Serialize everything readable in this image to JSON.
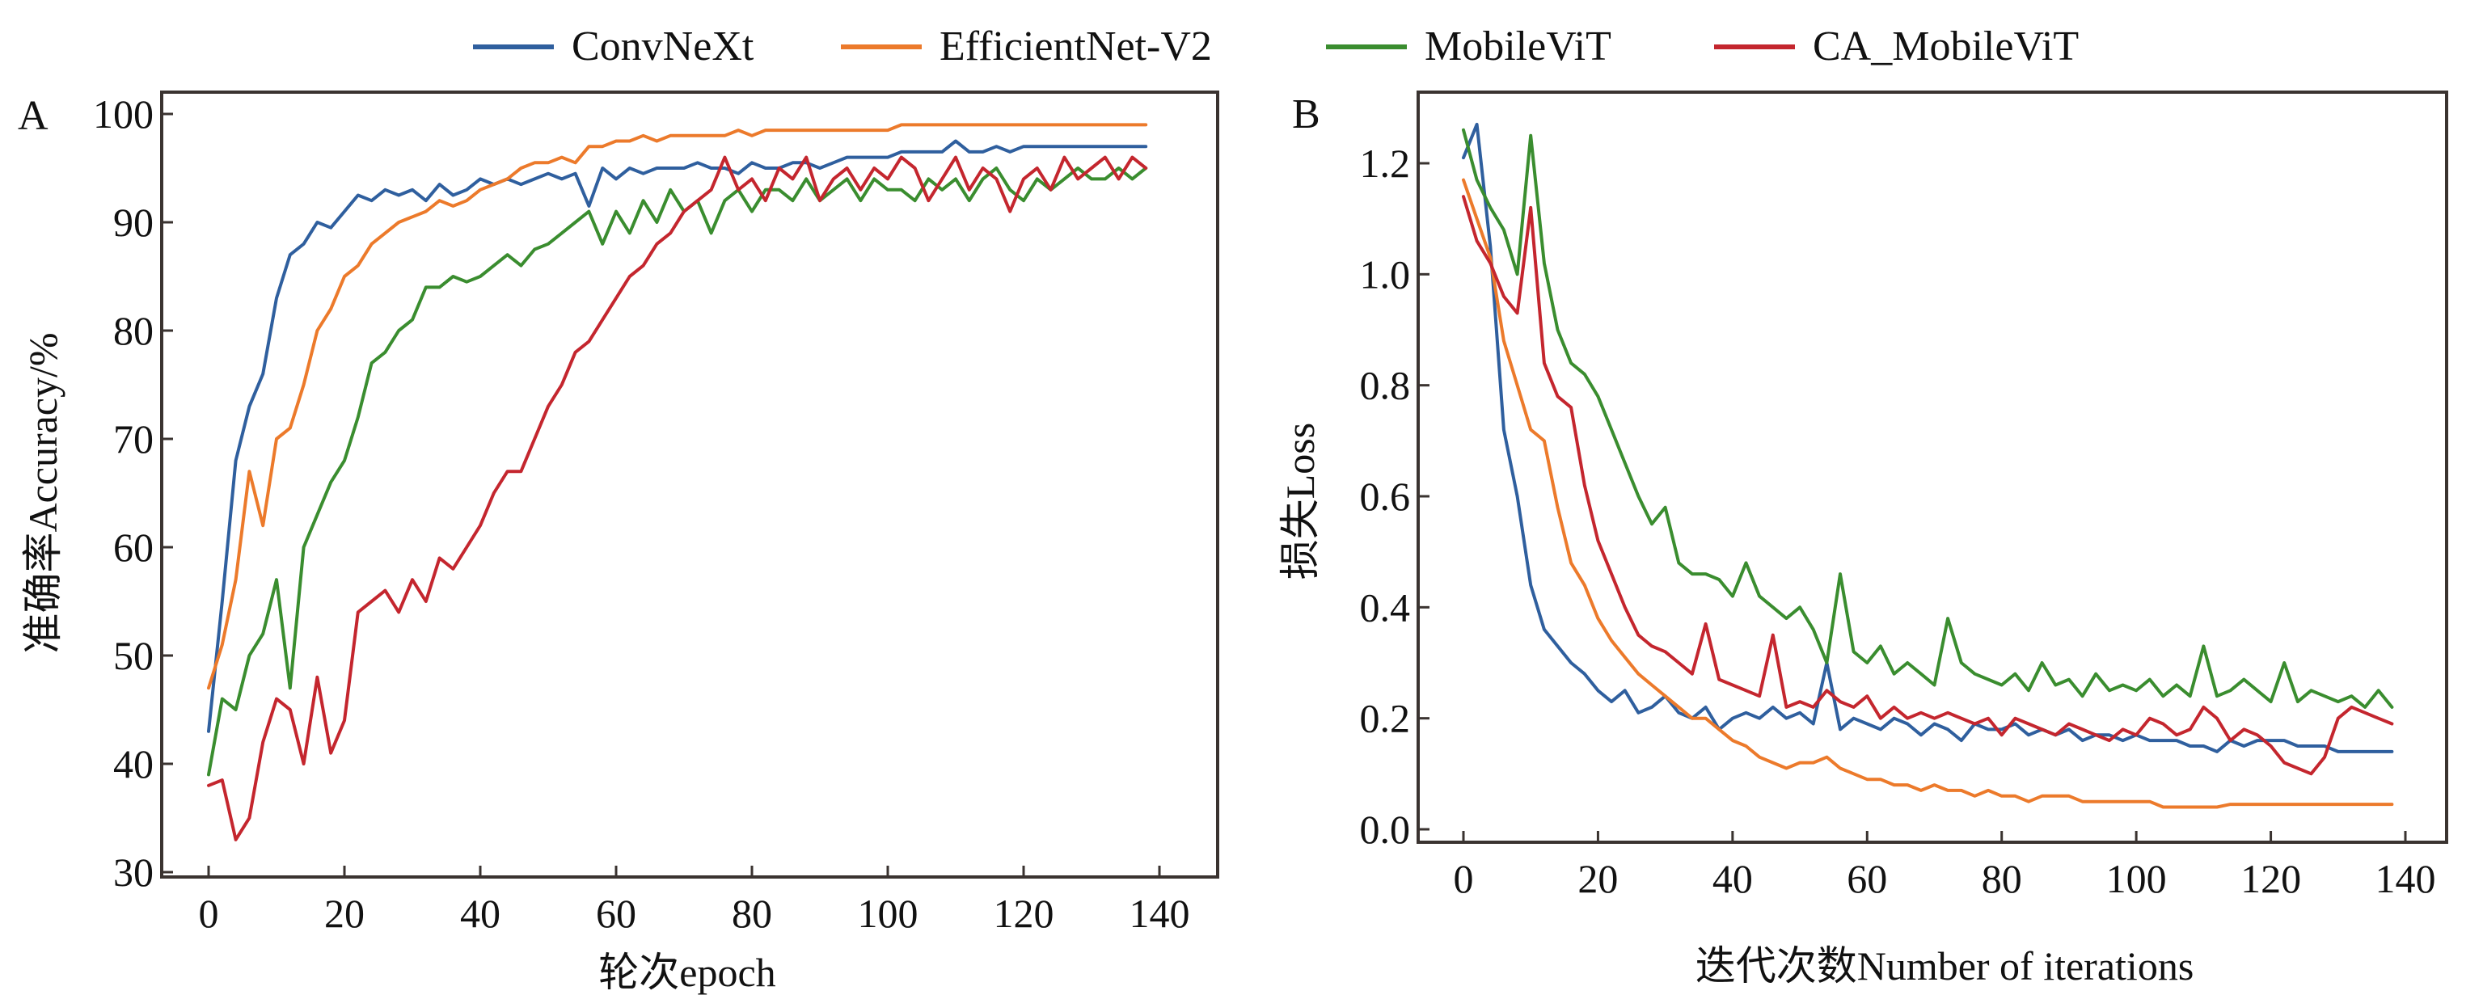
{
  "legend": [
    {
      "name": "ConvNeXt",
      "color": "#2f5f9e"
    },
    {
      "name": "EfficientNet-V2",
      "color": "#ec7a2b"
    },
    {
      "name": "MobileViT",
      "color": "#3a8d2f"
    },
    {
      "name": "CA_MobileViT",
      "color": "#c4262e"
    }
  ],
  "chart_data": [
    {
      "type": "line",
      "panel_label": "A",
      "title": "",
      "xlabel": "轮次epoch",
      "ylabel": "准确率Accuracy/%",
      "xlim": [
        0,
        140
      ],
      "ylim": [
        30,
        100
      ],
      "xticks": [
        0,
        20,
        40,
        60,
        80,
        100,
        120,
        140
      ],
      "yticks": [
        30,
        40,
        50,
        60,
        70,
        80,
        90,
        100
      ],
      "grid": false,
      "legend_position": "top-center",
      "x": [
        0,
        2,
        4,
        6,
        8,
        10,
        12,
        14,
        16,
        18,
        20,
        22,
        24,
        26,
        28,
        30,
        32,
        34,
        36,
        38,
        40,
        42,
        44,
        46,
        48,
        50,
        52,
        54,
        56,
        58,
        60,
        62,
        64,
        66,
        68,
        70,
        72,
        74,
        76,
        78,
        80,
        82,
        84,
        86,
        88,
        90,
        92,
        94,
        96,
        98,
        100,
        102,
        104,
        106,
        108,
        110,
        112,
        114,
        116,
        118,
        120,
        122,
        124,
        126,
        128,
        130,
        132,
        134,
        136,
        138
      ],
      "series": [
        {
          "name": "ConvNeXt",
          "values": [
            43,
            55,
            68,
            73,
            76,
            83,
            87,
            88,
            90,
            89.5,
            91,
            92.5,
            92,
            93,
            92.5,
            93,
            92,
            93.5,
            92.5,
            93,
            94,
            93.5,
            94,
            93.5,
            94,
            94.5,
            94,
            94.5,
            91.5,
            95,
            94,
            95,
            94.5,
            95,
            95,
            95,
            95.5,
            95,
            95,
            94.5,
            95.5,
            95,
            95,
            95.5,
            95.5,
            95,
            95.5,
            96,
            96,
            96,
            96,
            96.5,
            96.5,
            96.5,
            96.5,
            97.5,
            96.5,
            96.5,
            97,
            96.5,
            97,
            97,
            97,
            97,
            97,
            97,
            97,
            97,
            97,
            97
          ]
        },
        {
          "name": "EfficientNet-V2",
          "values": [
            47,
            51,
            57,
            67,
            62,
            70,
            71,
            75,
            80,
            82,
            85,
            86,
            88,
            89,
            90,
            90.5,
            91,
            92,
            91.5,
            92,
            93,
            93.5,
            94,
            95,
            95.5,
            95.5,
            96,
            95.5,
            97,
            97,
            97.5,
            97.5,
            98,
            97.5,
            98,
            98,
            98,
            98,
            98,
            98.5,
            98,
            98.5,
            98.5,
            98.5,
            98.5,
            98.5,
            98.5,
            98.5,
            98.5,
            98.5,
            98.5,
            99,
            99,
            99,
            99,
            99,
            99,
            99,
            99,
            99,
            99,
            99,
            99,
            99,
            99,
            99,
            99,
            99,
            99,
            99
          ]
        },
        {
          "name": "MobileViT",
          "values": [
            39,
            46,
            45,
            50,
            52,
            57,
            47,
            60,
            63,
            66,
            68,
            72,
            77,
            78,
            80,
            81,
            84,
            84,
            85,
            84.5,
            85,
            86,
            87,
            86,
            87.5,
            88,
            89,
            90,
            91,
            88,
            91,
            89,
            92,
            90,
            93,
            91,
            92,
            89,
            92,
            93,
            91,
            93,
            93,
            92,
            94,
            92,
            93,
            94,
            92,
            94,
            93,
            93,
            92,
            94,
            93,
            94,
            92,
            94,
            95,
            93,
            92,
            94,
            93,
            94,
            95,
            94,
            94,
            95,
            94,
            95
          ]
        },
        {
          "name": "CA_MobileViT",
          "values": [
            38,
            38.5,
            33,
            35,
            42,
            46,
            45,
            40,
            48,
            41,
            44,
            54,
            55,
            56,
            54,
            57,
            55,
            59,
            58,
            60,
            62,
            65,
            67,
            67,
            70,
            73,
            75,
            78,
            79,
            81,
            83,
            85,
            86,
            88,
            89,
            91,
            92,
            93,
            96,
            93,
            94,
            92,
            95,
            94,
            96,
            92,
            94,
            95,
            93,
            95,
            94,
            96,
            95,
            92,
            94,
            96,
            93,
            95,
            94,
            91,
            94,
            95,
            93,
            96,
            94,
            95,
            96,
            94,
            96,
            95
          ]
        }
      ]
    },
    {
      "type": "line",
      "panel_label": "B",
      "title": "",
      "xlabel": "迭代次数Number of iterations",
      "ylabel": "损失Loss",
      "xlim": [
        0,
        140
      ],
      "ylim": [
        0.0,
        1.2
      ],
      "xticks": [
        0,
        20,
        40,
        60,
        80,
        100,
        120,
        140
      ],
      "yticks": [
        0.0,
        0.2,
        0.4,
        0.6,
        0.8,
        1.0,
        1.2
      ],
      "grid": false,
      "x": [
        0,
        2,
        4,
        6,
        8,
        10,
        12,
        14,
        16,
        18,
        20,
        22,
        24,
        26,
        28,
        30,
        32,
        34,
        36,
        38,
        40,
        42,
        44,
        46,
        48,
        50,
        52,
        54,
        56,
        58,
        60,
        62,
        64,
        66,
        68,
        70,
        72,
        74,
        76,
        78,
        80,
        82,
        84,
        86,
        88,
        90,
        92,
        94,
        96,
        98,
        100,
        102,
        104,
        106,
        108,
        110,
        112,
        114,
        116,
        118,
        120,
        122,
        124,
        126,
        128,
        130,
        132,
        134,
        136,
        138
      ],
      "series": [
        {
          "name": "ConvNeXt",
          "values": [
            1.21,
            1.27,
            1.05,
            0.72,
            0.6,
            0.44,
            0.36,
            0.33,
            0.3,
            0.28,
            0.25,
            0.23,
            0.25,
            0.21,
            0.22,
            0.24,
            0.21,
            0.2,
            0.22,
            0.18,
            0.2,
            0.21,
            0.2,
            0.22,
            0.2,
            0.21,
            0.19,
            0.3,
            0.18,
            0.2,
            0.19,
            0.18,
            0.2,
            0.19,
            0.17,
            0.19,
            0.18,
            0.16,
            0.19,
            0.18,
            0.18,
            0.19,
            0.17,
            0.18,
            0.17,
            0.18,
            0.16,
            0.17,
            0.17,
            0.16,
            0.17,
            0.16,
            0.16,
            0.16,
            0.15,
            0.15,
            0.14,
            0.16,
            0.15,
            0.16,
            0.16,
            0.16,
            0.15,
            0.15,
            0.15,
            0.14,
            0.14,
            0.14,
            0.14,
            0.14
          ]
        },
        {
          "name": "EfficientNet-V2",
          "values": [
            1.17,
            1.1,
            1.03,
            0.88,
            0.8,
            0.72,
            0.7,
            0.58,
            0.48,
            0.44,
            0.38,
            0.34,
            0.31,
            0.28,
            0.26,
            0.24,
            0.22,
            0.2,
            0.2,
            0.18,
            0.16,
            0.15,
            0.13,
            0.12,
            0.11,
            0.12,
            0.12,
            0.13,
            0.11,
            0.1,
            0.09,
            0.09,
            0.08,
            0.08,
            0.07,
            0.08,
            0.07,
            0.07,
            0.06,
            0.07,
            0.06,
            0.06,
            0.05,
            0.06,
            0.06,
            0.06,
            0.05,
            0.05,
            0.05,
            0.05,
            0.05,
            0.05,
            0.04,
            0.04,
            0.04,
            0.04,
            0.04,
            0.045,
            0.045,
            0.045,
            0.045,
            0.045,
            0.045,
            0.045,
            0.045,
            0.045,
            0.045,
            0.045,
            0.045,
            0.045
          ]
        },
        {
          "name": "MobileViT",
          "values": [
            1.26,
            1.17,
            1.12,
            1.08,
            1.0,
            1.25,
            1.02,
            0.9,
            0.84,
            0.82,
            0.78,
            0.72,
            0.66,
            0.6,
            0.55,
            0.58,
            0.48,
            0.46,
            0.46,
            0.45,
            0.42,
            0.48,
            0.42,
            0.4,
            0.38,
            0.4,
            0.36,
            0.3,
            0.46,
            0.32,
            0.3,
            0.33,
            0.28,
            0.3,
            0.28,
            0.26,
            0.38,
            0.3,
            0.28,
            0.27,
            0.26,
            0.28,
            0.25,
            0.3,
            0.26,
            0.27,
            0.24,
            0.28,
            0.25,
            0.26,
            0.25,
            0.27,
            0.24,
            0.26,
            0.24,
            0.33,
            0.24,
            0.25,
            0.27,
            0.25,
            0.23,
            0.3,
            0.23,
            0.25,
            0.24,
            0.23,
            0.24,
            0.22,
            0.25,
            0.22
          ]
        },
        {
          "name": "CA_MobileViT",
          "values": [
            1.14,
            1.06,
            1.02,
            0.96,
            0.93,
            1.12,
            0.84,
            0.78,
            0.76,
            0.62,
            0.52,
            0.46,
            0.4,
            0.35,
            0.33,
            0.32,
            0.3,
            0.28,
            0.37,
            0.27,
            0.26,
            0.25,
            0.24,
            0.35,
            0.22,
            0.23,
            0.22,
            0.25,
            0.23,
            0.22,
            0.24,
            0.2,
            0.22,
            0.2,
            0.21,
            0.2,
            0.21,
            0.2,
            0.19,
            0.2,
            0.17,
            0.2,
            0.19,
            0.18,
            0.17,
            0.19,
            0.18,
            0.17,
            0.16,
            0.18,
            0.17,
            0.2,
            0.19,
            0.17,
            0.18,
            0.22,
            0.2,
            0.16,
            0.18,
            0.17,
            0.15,
            0.12,
            0.11,
            0.1,
            0.13,
            0.2,
            0.22,
            0.21,
            0.2,
            0.19
          ]
        }
      ]
    }
  ]
}
